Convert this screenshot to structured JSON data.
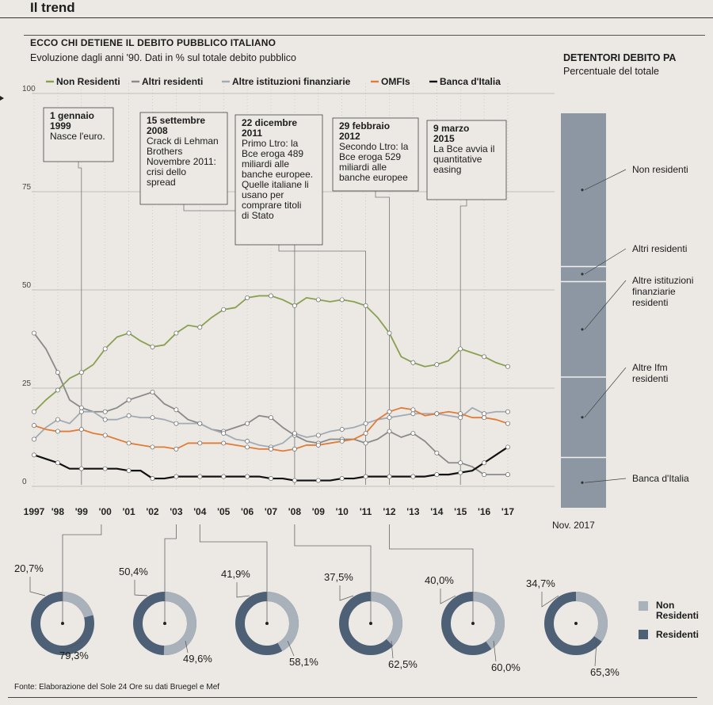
{
  "section_title": "Il trend",
  "main_title": "ECCO CHI DETIENE IL DEBITO PUBBLICO ITALIANO",
  "main_subtitle": "Evoluzione dagli anni '90. Dati in % sul totale debito pubblico",
  "side_title": "DETENTORI DEBITO PA",
  "side_subtitle": "Percentuale del totale",
  "source": "Fonte: Elaborazione del Sole 24 Ore su dati Bruegel e Mef",
  "colors": {
    "non_residenti": "#8aa050",
    "altri_residenti": "#8a8a8a",
    "altre_istituzioni": "#a3aab4",
    "omfis": "#e07c38",
    "banca_italia": "#111111",
    "donut_residenti": "#4d6076",
    "donut_non_residenti": "#a9b1bb",
    "bar": "#8d97a3"
  },
  "chart_data": [
    {
      "type": "line",
      "title": "ECCO CHI DETIENE IL DEBITO PUBBLICO ITALIANO",
      "ylim": [
        0,
        100
      ],
      "yticks": [
        0,
        25,
        50,
        75,
        100
      ],
      "categories": [
        "1997",
        "'98",
        "'99",
        "'00",
        "'01",
        "'02",
        "'03",
        "'04",
        "'05",
        "'06",
        "'07",
        "'08",
        "'09",
        "'10",
        "'11",
        "'12",
        "'13",
        "'14",
        "'15",
        "'16",
        "'17"
      ],
      "x": [
        0,
        0.5,
        1,
        1.5,
        2,
        2.5,
        3,
        3.5,
        4,
        4.5,
        5,
        5.5,
        6,
        6.5,
        7,
        7.5,
        8,
        8.5,
        9,
        9.5,
        10,
        10.5,
        11,
        11.5,
        12,
        12.5,
        13,
        13.5,
        14,
        14.5,
        15,
        15.5,
        16,
        16.5,
        17,
        17.5,
        18,
        18.5,
        19,
        19.5,
        20
      ],
      "series": [
        {
          "name": "Non Residenti",
          "key": "non_residenti",
          "values": [
            19,
            22,
            24.5,
            27.5,
            29,
            31,
            35,
            38,
            39,
            37,
            35.5,
            36,
            39,
            41,
            40.5,
            43,
            45,
            45.5,
            48,
            48.5,
            48.5,
            47.5,
            46,
            48,
            47.5,
            47,
            47.5,
            47,
            46,
            43,
            39,
            33,
            31.5,
            30.5,
            31,
            32,
            35,
            34,
            33,
            31.5,
            30.5
          ]
        },
        {
          "name": "Altri residenti",
          "key": "altri_residenti",
          "values": [
            39,
            35,
            29,
            22,
            20,
            19,
            19,
            20,
            22,
            23,
            24,
            21,
            19.5,
            17,
            16,
            14.5,
            14,
            15,
            16,
            18,
            17.5,
            15,
            13,
            11.5,
            11,
            12,
            12,
            12,
            11,
            12,
            14,
            12.5,
            13.5,
            11.5,
            8.5,
            6,
            6,
            5,
            3,
            3,
            3
          ]
        },
        {
          "name": "Altre istituzioni finanziarie",
          "key": "altre_istituzioni",
          "values": [
            12,
            15,
            17,
            16,
            19,
            19,
            17,
            17,
            18,
            17.5,
            17.5,
            17,
            16,
            16,
            16,
            14.5,
            13.5,
            12,
            11.5,
            10.5,
            10,
            11,
            13.5,
            12.5,
            13,
            14,
            14.5,
            15,
            16,
            17,
            17.5,
            18,
            18.5,
            18.5,
            18.5,
            18,
            17.5,
            20,
            18.5,
            19,
            19
          ]
        },
        {
          "name": "OMFIs",
          "key": "omfis",
          "values": [
            15.5,
            14.5,
            14,
            14,
            14.5,
            13.5,
            13,
            12,
            11,
            10.5,
            10,
            10,
            9.5,
            11,
            11,
            11,
            11,
            10.5,
            10,
            9.5,
            9.5,
            9,
            9.5,
            10.5,
            10.5,
            11,
            11.5,
            12,
            13.5,
            17,
            19,
            20,
            19.5,
            18,
            18.5,
            19,
            18.5,
            17.5,
            17.5,
            17,
            16
          ]
        },
        {
          "name": "Banca d'Italia",
          "key": "banca_italia",
          "values": [
            8,
            7,
            6,
            4.5,
            4.5,
            4.5,
            4.5,
            4.5,
            4,
            4,
            2,
            2,
            2.5,
            2.5,
            2.5,
            2.5,
            2.5,
            2.5,
            2.5,
            2.5,
            2,
            2,
            1.5,
            1.5,
            1.5,
            1.5,
            2,
            2,
            2.5,
            2.5,
            2.5,
            2.5,
            2.5,
            2.5,
            3,
            3,
            3.5,
            4,
            6,
            8,
            10
          ]
        }
      ],
      "annotations": [
        {
          "date": "1 gennaio 1999",
          "date_lines": [
            "1 gennaio",
            "1999"
          ],
          "text": [
            "Nasce l'euro."
          ],
          "x": 2
        },
        {
          "date": "15 settembre 2008",
          "date_lines": [
            "15 settembre",
            "2008"
          ],
          "text": [
            "Crack di Lehman",
            "Brothers",
            "Novembre 2011:",
            "crisi dello",
            "spread"
          ],
          "x": 11
        },
        {
          "date": "22 dicembre 2011",
          "date_lines": [
            "22 dicembre",
            "2011"
          ],
          "text": [
            "Primo Ltro: la",
            "Bce eroga 489",
            "miliardi alle",
            "banche europee.",
            "Quelle italiane li",
            "usano per",
            "comprare titoli",
            "di Stato"
          ],
          "x": 14
        },
        {
          "date": "29 febbraio 2012",
          "date_lines": [
            "29 febbraio",
            "2012"
          ],
          "text": [
            "Secondo Ltro: la",
            "Bce eroga 529",
            "miliardi alle",
            "banche europee"
          ],
          "x": 15
        },
        {
          "date": "9 marzo 2015",
          "date_lines": [
            "9 marzo",
            "2015"
          ],
          "text": [
            "La Bce avvia il",
            "quantitative",
            "easing"
          ],
          "x": 18
        }
      ]
    },
    {
      "type": "bar",
      "title": "DETENTORI DEBITO PA",
      "subtitle": "Percentuale del totale",
      "stacked": true,
      "categories": [
        "Nov. 2017"
      ],
      "series": [
        {
          "name": "Non residenti",
          "value": 30.5
        },
        {
          "name": "Altri residenti",
          "value": 3
        },
        {
          "name": "Altre istituzioni finanziarie residenti",
          "value": 19
        },
        {
          "name": "Altre Ifm residenti",
          "value": 16
        },
        {
          "name": "Banca d'Italia",
          "value": 10
        }
      ]
    },
    {
      "type": "pie",
      "donut": true,
      "legend": [
        "Non Residenti",
        "Residenti"
      ],
      "items": [
        {
          "year": "1997",
          "non_residenti": 20.7,
          "residenti": 79.3,
          "label_non": "20,7%",
          "label_res": "79,3%"
        },
        {
          "year": "'00",
          "non_residenti": 50.4,
          "residenti": 49.6,
          "label_non": "50,4%",
          "label_res": "49,6%"
        },
        {
          "year": "'04",
          "non_residenti": 41.9,
          "residenti": 58.1,
          "label_non": "41,9%",
          "label_res": "58,1%"
        },
        {
          "year": "'08",
          "non_residenti": 37.5,
          "residenti": 62.5,
          "label_non": "37,5%",
          "label_res": "62,5%"
        },
        {
          "year": "'12",
          "non_residenti": 40.0,
          "residenti": 60.0,
          "label_non": "40,0%",
          "label_res": "60,0%"
        },
        {
          "year": "Nov. 2017",
          "non_residenti": 34.7,
          "residenti": 65.3,
          "label_non": "34,7%",
          "label_res": "65,3%"
        }
      ]
    }
  ]
}
